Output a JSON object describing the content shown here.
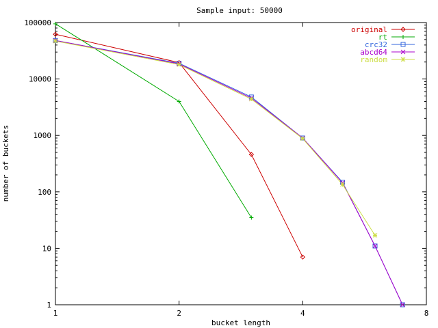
{
  "chart_data": {
    "type": "line",
    "title": "Sample input: 50000",
    "xlabel": "bucket length",
    "ylabel": "number of buckets",
    "x_scale": "log2",
    "y_scale": "log10",
    "xlim": [
      1,
      8
    ],
    "ylim": [
      1,
      100000
    ],
    "x_ticks": [
      1,
      2,
      4,
      8
    ],
    "x_tick_labels": [
      "1",
      "2",
      "4",
      "8"
    ],
    "y_ticks": [
      1,
      10,
      100,
      1000,
      10000,
      100000
    ],
    "y_tick_labels": [
      "1",
      "10",
      "100",
      "1000",
      "10000",
      "100000"
    ],
    "grid": false,
    "legend_position": "top-right",
    "series": [
      {
        "name": "original",
        "color": "#cc0000",
        "marker": "diamond",
        "x": [
          1,
          2,
          3,
          4
        ],
        "y": [
          62000,
          19500,
          460,
          7
        ]
      },
      {
        "name": "rt",
        "color": "#00aa00",
        "marker": "plus",
        "x": [
          1,
          2,
          3
        ],
        "y": [
          95000,
          4000,
          35
        ]
      },
      {
        "name": "crc32",
        "color": "#3366dd",
        "marker": "square",
        "x": [
          1,
          2,
          3,
          4,
          5,
          6,
          7
        ],
        "y": [
          48000,
          19000,
          4800,
          900,
          148,
          11,
          1
        ]
      },
      {
        "name": "abcd64",
        "color": "#aa00cc",
        "marker": "x",
        "x": [
          1,
          2,
          3,
          4,
          5,
          6,
          7
        ],
        "y": [
          48000,
          18500,
          4600,
          900,
          145,
          11,
          1
        ]
      },
      {
        "name": "random",
        "color": "#ccdd44",
        "marker": "star",
        "x": [
          1,
          2,
          3,
          4,
          5,
          6
        ],
        "y": [
          47000,
          18000,
          4400,
          880,
          135,
          17
        ]
      }
    ]
  }
}
